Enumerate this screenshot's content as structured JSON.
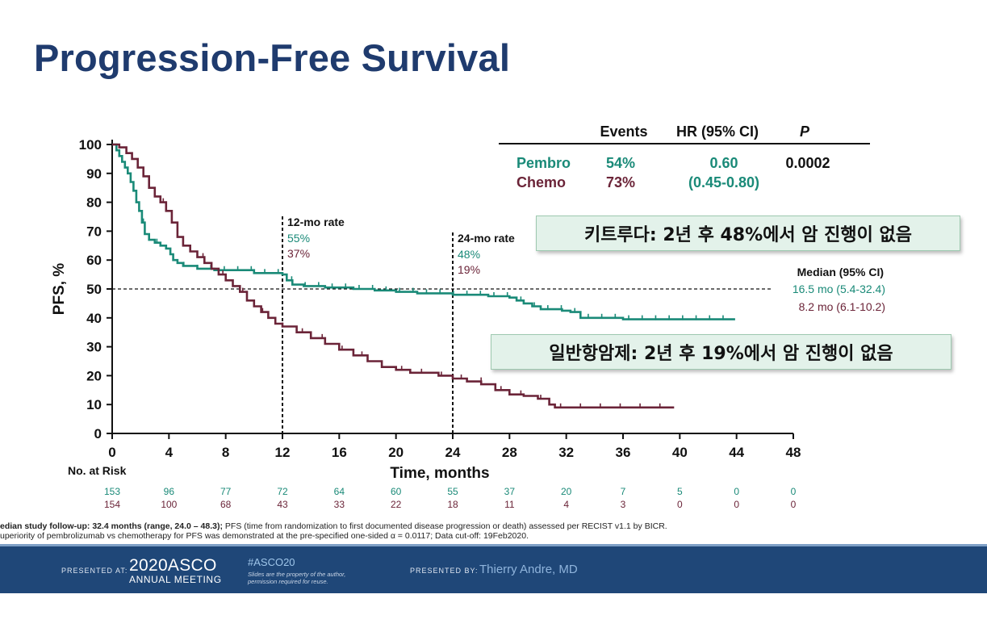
{
  "slide": {
    "title": "Progression-Free Survival",
    "callout_pembro": "키트루다: 2년 후 48%에서 암 진행이 없음",
    "callout_chemo": "일반항암제: 2년 후 19%에서 암 진행이 없음"
  },
  "chart_data": {
    "type": "line",
    "subtype": "kaplan-meier",
    "title": "Progression-Free Survival",
    "xlabel": "Time, months",
    "ylabel": "PFS, %",
    "xlim": [
      0,
      48
    ],
    "ylim": [
      0,
      100
    ],
    "x_ticks": [
      0,
      4,
      8,
      12,
      16,
      20,
      24,
      28,
      32,
      36,
      40,
      44,
      48
    ],
    "y_ticks": [
      0,
      10,
      20,
      30,
      40,
      50,
      60,
      70,
      80,
      90,
      100
    ],
    "series": [
      {
        "name": "Pembro",
        "color": "#1a8a78",
        "x": [
          0,
          0.3,
          0.5,
          0.7,
          0.9,
          1.1,
          1.3,
          1.5,
          1.7,
          1.9,
          2.1,
          2.3,
          2.6,
          3.0,
          3.4,
          3.8,
          4.1,
          4.3,
          4.6,
          5.0,
          5.5,
          6.0,
          6.5,
          7.2,
          8.0,
          9.0,
          10.0,
          11.0,
          12.0,
          12.3,
          12.7,
          13.5,
          15.0,
          17.0,
          18.5,
          20.0,
          21.5,
          23.0,
          24.0,
          25.0,
          26.5,
          28.0,
          28.5,
          29.0,
          29.6,
          30.2,
          31.0,
          31.7,
          32.3,
          33.0,
          34.5,
          36.0,
          40.0,
          41.0,
          43.9
        ],
        "y": [
          100,
          98,
          96,
          94,
          92,
          90,
          87,
          84,
          80,
          77,
          73,
          69,
          67,
          66,
          65,
          64,
          62,
          60,
          59,
          58,
          58,
          57,
          57,
          56.5,
          56.5,
          56.5,
          55.5,
          55.5,
          55,
          53,
          51.5,
          51,
          50.5,
          50,
          49.5,
          49,
          48.5,
          48.5,
          48,
          48,
          47.5,
          47,
          46,
          45,
          44,
          43,
          43,
          42.5,
          42,
          40,
          40,
          39.5,
          39.5,
          39.5,
          39.5
        ],
        "median_months": 16.5,
        "median_ci": "5.4-32.4",
        "rate_12mo": 55,
        "rate_24mo": 48
      },
      {
        "name": "Chemo",
        "color": "#6b2438",
        "x": [
          0,
          0.5,
          1.0,
          1.4,
          1.8,
          2.2,
          2.6,
          3.0,
          3.4,
          3.8,
          4.2,
          4.6,
          5.0,
          5.5,
          6.0,
          6.5,
          7.0,
          7.5,
          8.0,
          8.5,
          9.0,
          9.5,
          10.0,
          10.5,
          11.0,
          11.5,
          12.0,
          13.0,
          14.0,
          15.0,
          16.0,
          17.0,
          18.0,
          19.0,
          20.0,
          21.0,
          22.0,
          23.0,
          24.0,
          25.0,
          26.0,
          27.0,
          28.0,
          29.0,
          30.0,
          30.8,
          31.2,
          33.0,
          36.0,
          39.6
        ],
        "y": [
          100,
          99,
          97,
          95,
          92,
          89,
          85,
          82,
          80,
          77,
          73,
          68,
          65,
          63,
          61,
          59,
          57,
          55,
          53,
          51,
          49,
          46,
          44,
          42,
          40,
          38,
          37,
          35,
          33,
          31,
          29,
          27,
          25,
          23,
          22,
          21,
          21,
          20,
          19,
          18,
          17,
          15,
          13.5,
          13,
          12,
          10,
          9,
          9,
          9,
          9
        ],
        "median_months": 8.2,
        "median_ci": "6.1-10.2",
        "rate_12mo": 37,
        "rate_24mo": 19
      }
    ],
    "reference_line_y": 50,
    "landmarks": [
      {
        "month": 12,
        "label": "12-mo rate",
        "pembro": "55%",
        "chemo": "37%"
      },
      {
        "month": 24,
        "label": "24-mo rate",
        "pembro": "48%",
        "chemo": "19%"
      }
    ],
    "stats_table": {
      "headers": [
        "Events",
        "HR (95% CI)",
        "P"
      ],
      "rows": [
        {
          "arm": "Pembro",
          "events": "54%",
          "hr": "0.60",
          "p": "0.0002"
        },
        {
          "arm": "Chemo",
          "events": "73%",
          "hr": "(0.45-0.80)",
          "p": ""
        }
      ]
    },
    "median_header": "Median (95%  CI)",
    "medians": [
      "16.5 mo (5.4-32.4)",
      "8.2 mo (6.1-10.2)"
    ],
    "at_risk": {
      "label": "No. at Risk",
      "times": [
        0,
        4,
        8,
        12,
        16,
        20,
        24,
        28,
        32,
        36,
        40,
        44,
        48
      ],
      "pembro": [
        153,
        96,
        77,
        72,
        64,
        60,
        55,
        37,
        20,
        7,
        5,
        0,
        0
      ],
      "chemo": [
        154,
        100,
        68,
        43,
        33,
        22,
        18,
        11,
        4,
        3,
        0,
        0,
        0
      ]
    }
  },
  "footnotes": {
    "line1_bold": "edian study follow-up: 32.4 months (range, 24.0 – 48.3);",
    "line1_rest": " PFS (time from randomization to first documented disease progression or death) assessed per RECIST v1.1 by BICR.",
    "line2": "uperiority of pembrolizumab  vs chemotherapy   for PFS was demonstrated  at the pre-specified one-sided α = 0.0117; Data cut-off:  19Feb2020."
  },
  "footer": {
    "presented_at": "PRESENTED AT:",
    "meeting_year_name": "2020ASCO",
    "meeting_sub": "ANNUAL MEETING",
    "hashtag": "#ASCO20",
    "disclaimer": "Slides are the property of the author, permission required for reuse.",
    "presented_by": "PRESENTED BY:",
    "presenter": "Thierry Andre, MD"
  }
}
